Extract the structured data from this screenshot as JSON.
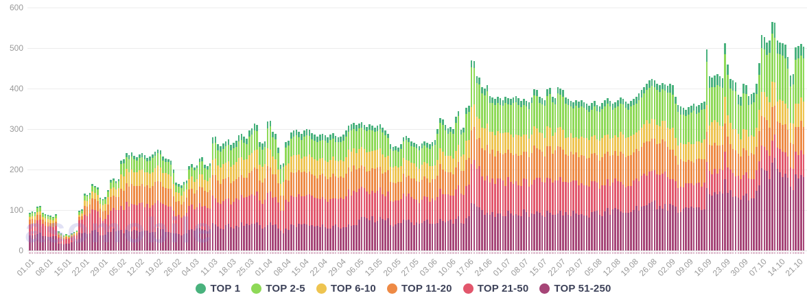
{
  "watermark": "asomobile",
  "chart_data": {
    "type": "bar",
    "stacked": true,
    "title": "",
    "xlabel": "",
    "ylabel": "",
    "ylim": [
      0,
      600
    ],
    "yticks": [
      0,
      100,
      200,
      300,
      400,
      500,
      600
    ],
    "grid": "horizontal",
    "legend_position": "bottom",
    "days_per_label": 7,
    "daily_jitter": 0.22,
    "series_order_bottom_to_top": [
      "TOP 51-250",
      "TOP 21-50",
      "TOP 11-20",
      "TOP 6-10",
      "TOP 2-5",
      "TOP 1"
    ],
    "series_colors_bottom_to_top": [
      "#a64577",
      "#e2566c",
      "#ee8a45",
      "#eec450",
      "#8ed957",
      "#49b27d"
    ],
    "legend": [
      {
        "label": "TOP 1",
        "color": "#49b27d"
      },
      {
        "label": "TOP 2-5",
        "color": "#8ed957"
      },
      {
        "label": "TOP 6-10",
        "color": "#eec450"
      },
      {
        "label": "TOP 11-20",
        "color": "#ee8a45"
      },
      {
        "label": "TOP 21-50",
        "color": "#e2566c"
      },
      {
        "label": "TOP 51-250",
        "color": "#a64577"
      }
    ],
    "x_tick_labels": [
      "01.01",
      "08.01",
      "15.01",
      "22.01",
      "29.01",
      "05.02",
      "12.02",
      "19.02",
      "26.02",
      "04.03",
      "11.03",
      "18.03",
      "25.03",
      "01.04",
      "08.04",
      "15.04",
      "22.04",
      "29.04",
      "06.05",
      "13.05",
      "20.05",
      "27.05",
      "03.06",
      "10.06",
      "17.06",
      "24.06",
      "01.07",
      "08.07",
      "15.07",
      "22.07",
      "29.07",
      "05.08",
      "12.08",
      "19.08",
      "26.08",
      "02.09",
      "09.09",
      "16.09",
      "23.09",
      "30.09",
      "07.10",
      "14.10",
      "21.10"
    ],
    "weeks": [
      {
        "label": "01.01",
        "daily_totals": [
          93,
          96,
          95,
          108,
          110,
          94,
          90
        ],
        "split": [
          0.4,
          0.3,
          0.11,
          0.08,
          0.08,
          0.03
        ]
      },
      {
        "label": "08.01",
        "daily_totals": [
          88,
          86,
          84,
          90,
          48,
          42,
          38
        ],
        "split": [
          0.4,
          0.3,
          0.11,
          0.08,
          0.08,
          0.03
        ]
      },
      {
        "label": "15.01",
        "daily_totals": [
          40,
          38,
          42,
          46,
          50,
          98,
          102
        ],
        "split": [
          0.46,
          0.3,
          0.09,
          0.06,
          0.06,
          0.03
        ]
      },
      {
        "label": "22.01",
        "daily_totals": [
          140,
          138,
          142,
          164,
          160,
          156,
          130
        ],
        "split": [
          0.3,
          0.32,
          0.17,
          0.1,
          0.08,
          0.03
        ]
      },
      {
        "label": "29.01",
        "daily_totals": [
          128,
          132,
          150,
          174,
          178,
          172,
          176
        ],
        "split": [
          0.28,
          0.3,
          0.18,
          0.12,
          0.09,
          0.03
        ]
      },
      {
        "label": "05.02",
        "daily_totals": [
          222,
          226,
          240,
          236,
          242,
          234,
          230
        ],
        "split": [
          0.21,
          0.27,
          0.2,
          0.15,
          0.13,
          0.04
        ]
      },
      {
        "label": "12.02",
        "daily_totals": [
          238,
          241,
          235,
          229,
          232,
          238,
          244
        ],
        "split": [
          0.21,
          0.27,
          0.2,
          0.15,
          0.13,
          0.04
        ]
      },
      {
        "label": "19.02",
        "daily_totals": [
          250,
          248,
          232,
          228,
          226,
          222,
          200
        ],
        "split": [
          0.21,
          0.27,
          0.2,
          0.15,
          0.13,
          0.04
        ]
      },
      {
        "label": "26.02",
        "daily_totals": [
          168,
          164,
          161,
          170,
          173,
          208,
          214
        ],
        "split": [
          0.25,
          0.28,
          0.2,
          0.13,
          0.1,
          0.04
        ]
      },
      {
        "label": "04.03",
        "daily_totals": [
          206,
          211,
          227,
          231,
          212,
          208,
          216
        ],
        "split": [
          0.24,
          0.26,
          0.19,
          0.14,
          0.13,
          0.04
        ]
      },
      {
        "label": "11.03",
        "daily_totals": [
          279,
          281,
          262,
          257,
          264,
          270,
          274
        ],
        "split": [
          0.22,
          0.24,
          0.19,
          0.15,
          0.15,
          0.05
        ]
      },
      {
        "label": "18.03",
        "daily_totals": [
          261,
          266,
          271,
          284,
          288,
          281,
          277
        ],
        "split": [
          0.22,
          0.24,
          0.19,
          0.15,
          0.15,
          0.05
        ]
      },
      {
        "label": "25.03",
        "daily_totals": [
          297,
          301,
          314,
          311,
          268,
          264,
          270
        ],
        "split": [
          0.22,
          0.24,
          0.19,
          0.15,
          0.15,
          0.05
        ]
      },
      {
        "label": "01.04",
        "daily_totals": [
          318,
          321,
          294,
          288,
          254,
          212,
          216
        ],
        "split": [
          0.21,
          0.25,
          0.19,
          0.14,
          0.16,
          0.05
        ]
      },
      {
        "label": "08.04",
        "daily_totals": [
          268,
          272,
          292,
          296,
          298,
          294,
          288
        ],
        "split": [
          0.21,
          0.25,
          0.19,
          0.14,
          0.16,
          0.05
        ]
      },
      {
        "label": "15.04",
        "daily_totals": [
          296,
          300,
          298,
          290,
          286,
          282,
          286
        ],
        "split": [
          0.21,
          0.25,
          0.19,
          0.14,
          0.16,
          0.05
        ]
      },
      {
        "label": "22.04",
        "daily_totals": [
          288,
          284,
          280,
          286,
          290,
          284,
          280
        ],
        "split": [
          0.21,
          0.25,
          0.19,
          0.14,
          0.16,
          0.05
        ]
      },
      {
        "label": "29.04",
        "daily_totals": [
          282,
          286,
          296,
          308,
          312,
          316,
          310
        ],
        "split": [
          0.21,
          0.25,
          0.19,
          0.14,
          0.16,
          0.05
        ]
      },
      {
        "label": "06.05",
        "daily_totals": [
          314,
          317,
          311,
          306,
          312,
          308,
          304
        ],
        "split": [
          0.26,
          0.22,
          0.18,
          0.14,
          0.16,
          0.04
        ]
      },
      {
        "label": "13.05",
        "daily_totals": [
          308,
          312,
          304,
          296,
          288,
          262,
          256
        ],
        "split": [
          0.26,
          0.22,
          0.18,
          0.14,
          0.16,
          0.04
        ]
      },
      {
        "label": "20.05",
        "daily_totals": [
          258,
          254,
          262,
          280,
          284,
          278,
          270
        ],
        "split": [
          0.26,
          0.22,
          0.18,
          0.14,
          0.16,
          0.04
        ]
      },
      {
        "label": "27.05",
        "daily_totals": [
          266,
          262,
          258,
          264,
          270,
          266,
          262
        ],
        "split": [
          0.26,
          0.22,
          0.18,
          0.14,
          0.16,
          0.04
        ]
      },
      {
        "label": "03.06",
        "daily_totals": [
          268,
          273,
          300,
          328,
          324,
          310,
          302
        ],
        "split": [
          0.24,
          0.22,
          0.18,
          0.13,
          0.19,
          0.04
        ]
      },
      {
        "label": "10.06",
        "daily_totals": [
          305,
          300,
          330,
          345,
          298,
          304,
          352
        ],
        "split": [
          0.24,
          0.22,
          0.18,
          0.13,
          0.19,
          0.04
        ]
      },
      {
        "label": "17.06",
        "daily_totals": [
          358,
          470,
          468,
          430,
          428,
          404,
          400
        ],
        "split": [
          0.24,
          0.22,
          0.18,
          0.13,
          0.19,
          0.04
        ]
      },
      {
        "label": "24.06",
        "daily_totals": [
          408,
          382,
          378,
          374,
          380,
          376,
          372
        ],
        "split": [
          0.24,
          0.22,
          0.18,
          0.13,
          0.19,
          0.04
        ]
      },
      {
        "label": "01.07",
        "daily_totals": [
          380,
          377,
          374,
          378,
          382,
          376,
          370
        ],
        "split": [
          0.24,
          0.21,
          0.19,
          0.12,
          0.2,
          0.04
        ]
      },
      {
        "label": "08.07",
        "daily_totals": [
          374,
          370,
          366,
          378,
          398,
          396,
          380
        ],
        "split": [
          0.24,
          0.21,
          0.19,
          0.12,
          0.2,
          0.04
        ]
      },
      {
        "label": "15.07",
        "daily_totals": [
          376,
          372,
          398,
          402,
          380,
          376,
          404
        ],
        "split": [
          0.24,
          0.21,
          0.19,
          0.12,
          0.2,
          0.04
        ]
      },
      {
        "label": "22.07",
        "daily_totals": [
          400,
          396,
          378,
          374,
          370,
          366,
          372
        ],
        "split": [
          0.24,
          0.21,
          0.19,
          0.12,
          0.2,
          0.04
        ]
      },
      {
        "label": "29.07",
        "daily_totals": [
          368,
          372,
          366,
          362,
          358,
          364,
          370
        ],
        "split": [
          0.24,
          0.21,
          0.19,
          0.12,
          0.2,
          0.04
        ]
      },
      {
        "label": "05.08",
        "daily_totals": [
          360,
          356,
          364,
          372,
          376,
          370,
          362
        ],
        "split": [
          0.26,
          0.19,
          0.19,
          0.12,
          0.2,
          0.04
        ]
      },
      {
        "label": "12.08",
        "daily_totals": [
          366,
          372,
          378,
          374,
          368,
          362,
          370
        ],
        "split": [
          0.26,
          0.19,
          0.19,
          0.12,
          0.2,
          0.04
        ]
      },
      {
        "label": "19.08",
        "daily_totals": [
          374,
          380,
          388,
          396,
          404,
          412,
          420
        ],
        "split": [
          0.26,
          0.19,
          0.19,
          0.12,
          0.2,
          0.04
        ]
      },
      {
        "label": "26.08",
        "daily_totals": [
          424,
          420,
          412,
          408,
          414,
          410,
          406
        ],
        "split": [
          0.26,
          0.19,
          0.19,
          0.12,
          0.2,
          0.04
        ]
      },
      {
        "label": "02.09",
        "daily_totals": [
          412,
          408,
          380,
          360,
          356,
          352,
          348
        ],
        "split": [
          0.29,
          0.16,
          0.17,
          0.12,
          0.21,
          0.05
        ]
      },
      {
        "label": "09.09",
        "daily_totals": [
          354,
          358,
          362,
          356,
          360,
          364,
          368
        ],
        "split": [
          0.29,
          0.16,
          0.17,
          0.12,
          0.21,
          0.05
        ]
      },
      {
        "label": "16.09",
        "daily_totals": [
          497,
          430,
          428,
          432,
          436,
          430,
          426
        ],
        "split": [
          0.33,
          0.13,
          0.15,
          0.12,
          0.21,
          0.06
        ]
      },
      {
        "label": "23.09",
        "daily_totals": [
          512,
          460,
          424,
          420,
          416,
          384,
          380
        ],
        "split": [
          0.33,
          0.13,
          0.15,
          0.12,
          0.21,
          0.06
        ]
      },
      {
        "label": "30.09",
        "daily_totals": [
          412,
          408,
          382,
          386,
          390,
          412,
          462
        ],
        "split": [
          0.33,
          0.13,
          0.15,
          0.12,
          0.21,
          0.06
        ]
      },
      {
        "label": "07.10",
        "daily_totals": [
          532,
          528,
          514,
          518,
          565,
          562,
          518
        ],
        "split": [
          0.37,
          0.11,
          0.14,
          0.11,
          0.21,
          0.06
        ]
      },
      {
        "label": "14.10",
        "daily_totals": [
          514,
          512,
          508,
          478,
          432,
          436,
          502
        ],
        "split": [
          0.37,
          0.11,
          0.14,
          0.11,
          0.21,
          0.06
        ]
      },
      {
        "label": "21.10",
        "daily_totals": [
          506,
          510,
          504
        ],
        "split": [
          0.37,
          0.11,
          0.14,
          0.11,
          0.21,
          0.06
        ]
      }
    ]
  }
}
